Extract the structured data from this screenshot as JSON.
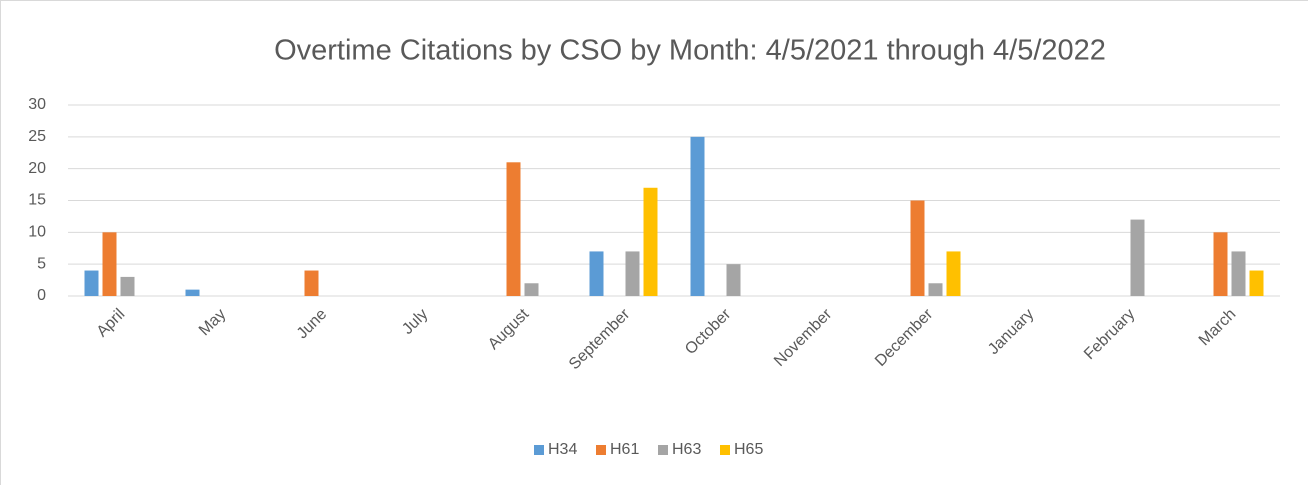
{
  "chart_data": {
    "type": "bar",
    "title": "Overtime Citations by CSO by Month: 4/5/2021 through 4/5/2022",
    "categories": [
      "April",
      "May",
      "June",
      "July",
      "August",
      "September",
      "October",
      "November",
      "December",
      "January",
      "February",
      "March"
    ],
    "series": [
      {
        "name": "H34",
        "color": "#5b9bd5",
        "values": [
          4,
          1,
          0,
          0,
          0,
          7,
          25,
          0,
          0,
          0,
          0,
          0
        ]
      },
      {
        "name": "H61",
        "color": "#ed7d31",
        "values": [
          10,
          0,
          4,
          0,
          21,
          0,
          0,
          0,
          15,
          0,
          0,
          10
        ]
      },
      {
        "name": "H63",
        "color": "#a5a5a5",
        "values": [
          3,
          0,
          0,
          0,
          2,
          7,
          5,
          0,
          2,
          0,
          12,
          7
        ]
      },
      {
        "name": "H65",
        "color": "#ffc000",
        "values": [
          0,
          0,
          0,
          0,
          0,
          17,
          0,
          0,
          7,
          0,
          0,
          4
        ]
      }
    ],
    "ylim": [
      0,
      30
    ],
    "yticks": [
      0,
      5,
      10,
      15,
      20,
      25,
      30
    ],
    "grid": true,
    "legend": "bottom"
  }
}
